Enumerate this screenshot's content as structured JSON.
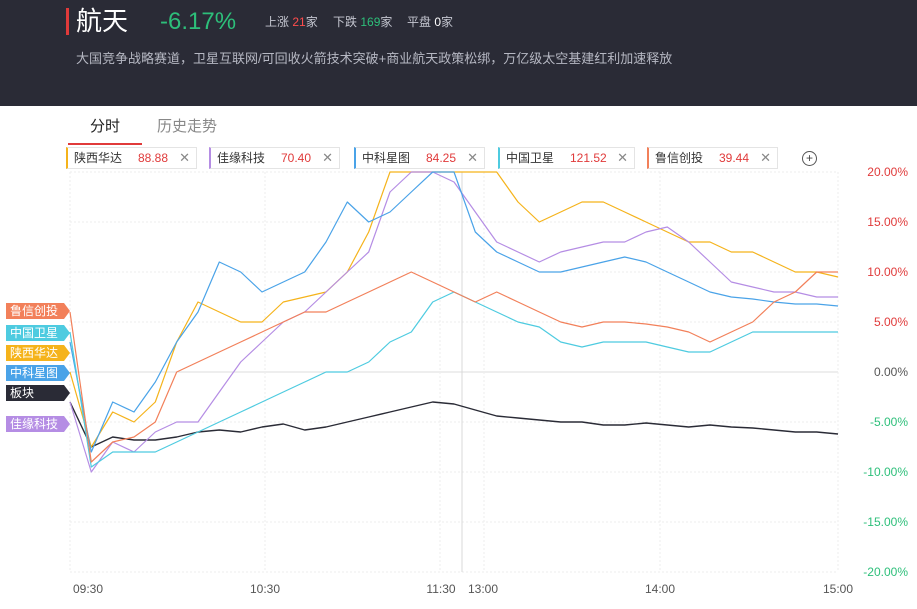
{
  "header": {
    "title": "航天",
    "change": "-6.17%",
    "up_label": "上涨",
    "up_count": "21",
    "up_unit": "家",
    "down_label": "下跌",
    "down_count": "169",
    "down_unit": "家",
    "flat_label": "平盘",
    "flat_count": "0",
    "flat_unit": "家",
    "description": "大国竞争战略赛道，卫星互联网/可回收火箭技术突破+商业航天政策松绑，万亿级太空基建红利加速释放"
  },
  "tabs": [
    {
      "label": "分时",
      "active": true
    },
    {
      "label": "历史走势",
      "active": false
    }
  ],
  "chips": [
    {
      "name": "陕西华达",
      "value": "88.88",
      "color": "#f5b31b"
    },
    {
      "name": "佳缘科技",
      "value": "70.40",
      "color": "#b58de4"
    },
    {
      "name": "中科星图",
      "value": "84.25",
      "color": "#4aa3e8"
    },
    {
      "name": "中国卫星",
      "value": "121.52",
      "color": "#4ecbe0"
    },
    {
      "name": "鲁信创投",
      "value": "39.44",
      "color": "#f2805a"
    }
  ],
  "tags": [
    {
      "label": "鲁信创投",
      "color": "#f2805a"
    },
    {
      "label": "中国卫星",
      "color": "#4ecbe0"
    },
    {
      "label": "陕西华达",
      "color": "#f5b31b"
    },
    {
      "label": "中科星图",
      "color": "#4aa3e8"
    },
    {
      "label": "板块",
      "color": "#2a2b36"
    },
    {
      "label": "佳缘科技",
      "color": "#b58de4"
    }
  ],
  "chart_data": {
    "type": "line",
    "x_ticks": [
      "09:30",
      "10:30",
      "11:30",
      "13:00",
      "14:00",
      "15:00"
    ],
    "y_ticks": [
      "20.00%",
      "15.00%",
      "10.00%",
      "5.00%",
      "0.00%",
      "-5.00%",
      "-10.00%",
      "-15.00%",
      "-20.00%"
    ],
    "ylim": [
      -20,
      20
    ],
    "grid": true,
    "series": [
      {
        "name": "板块",
        "color": "#2a2b36",
        "values": [
          -3,
          -7.5,
          -6.5,
          -6.8,
          -6.8,
          -6.5,
          -6,
          -5.8,
          -6,
          -5.5,
          -5.2,
          -5.8,
          -5.5,
          -5,
          -4.5,
          -4,
          -3.5,
          -3,
          -3.2,
          -3.8,
          -4.4,
          -4.6,
          -4.8,
          -5,
          -5,
          -5.3,
          -5.3,
          -5.1,
          -5.3,
          -5.5,
          -5.3,
          -5.5,
          -5.6,
          -5.8,
          -6,
          -6,
          -6.2
        ]
      },
      {
        "name": "陕西华达",
        "color": "#f5b31b",
        "values": [
          0,
          -7.5,
          -4,
          -5,
          -3,
          3,
          7,
          6,
          5,
          5,
          7,
          7.5,
          8,
          10,
          14,
          20,
          20,
          20,
          20,
          20,
          20,
          17,
          15,
          16,
          17,
          17,
          16,
          15,
          14,
          13,
          13,
          12,
          12,
          11,
          10,
          10,
          9.5
        ]
      },
      {
        "name": "佳缘科技",
        "color": "#b58de4",
        "values": [
          -3,
          -10,
          -7,
          -8,
          -6,
          -5,
          -5,
          -2,
          1,
          3,
          5,
          6,
          8,
          10,
          12,
          18,
          20,
          20,
          19,
          16,
          13,
          12,
          11,
          12,
          12.5,
          13,
          13,
          14,
          14.5,
          13,
          11,
          9,
          8.5,
          8,
          8,
          7.5,
          7.5
        ]
      },
      {
        "name": "中科星图",
        "color": "#4aa3e8",
        "values": [
          3,
          -8,
          -3,
          -4,
          -1,
          3,
          6,
          11,
          10,
          8,
          9,
          10,
          13,
          17,
          15,
          16,
          18,
          20,
          20,
          14,
          12,
          11,
          10,
          10,
          10.5,
          11,
          11.5,
          11,
          10,
          9,
          8,
          7.5,
          7.3,
          7,
          6.8,
          6.8,
          6.6
        ]
      },
      {
        "name": "中国卫星",
        "color": "#4ecbe0",
        "values": [
          4,
          -9.5,
          -8,
          -8,
          -8,
          -7,
          -6,
          -5,
          -4,
          -3,
          -2,
          -1,
          0,
          0,
          1,
          3,
          4,
          7,
          8,
          7,
          6,
          5,
          4.5,
          3,
          2.5,
          3,
          3,
          3,
          2.5,
          2,
          2,
          3,
          4,
          4,
          4,
          4,
          4
        ]
      },
      {
        "name": "鲁信创投",
        "color": "#f2805a",
        "values": [
          6,
          -9,
          -7,
          -6.5,
          -5,
          0,
          1,
          2,
          3,
          4,
          5,
          6,
          6,
          7,
          8,
          9,
          10,
          9,
          8,
          7,
          8,
          7,
          6,
          5,
          4.5,
          5,
          5,
          4.8,
          4.5,
          4,
          3,
          4,
          5,
          7,
          8,
          10,
          10
        ]
      }
    ]
  }
}
